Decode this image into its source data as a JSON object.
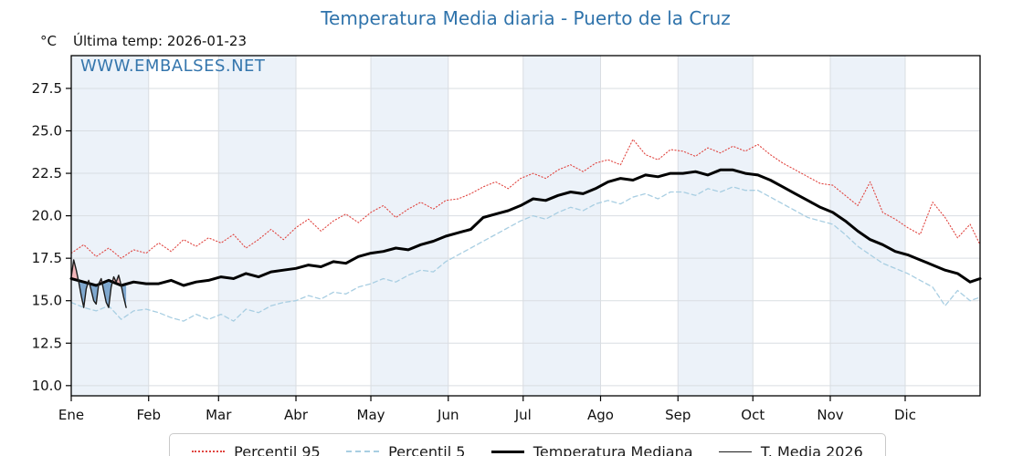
{
  "header": {
    "title": "Temperatura Media diaria - Puerto de la Cruz",
    "y_unit": "°C",
    "last_temp": "Última temp: 2026-01-23"
  },
  "watermark": "WWW.EMBALSES.NET",
  "colors": {
    "title_blue": "#2f73ab",
    "band": "#ecf2f9",
    "grid": "#d9dde2",
    "spine": "#000000",
    "fill_above": "#f2b6ba",
    "fill_below": "#7fa8cf"
  },
  "legend": [
    {
      "label": "Percentil 95",
      "style": "dotted",
      "color": "#e04540",
      "width": 2
    },
    {
      "label": "Percentil 5",
      "style": "dashed",
      "color": "#a8cee2",
      "width": 2
    },
    {
      "label": "Temperatura Mediana",
      "style": "solid",
      "color": "#000000",
      "width": 3
    },
    {
      "label": "T. Media 2026",
      "style": "solid",
      "color": "#1c1c1c",
      "width": 1.5
    }
  ],
  "chart_data": {
    "type": "line",
    "title": "Temperatura Media diaria - Puerto de la Cruz",
    "xlabel": "",
    "ylabel": "°C",
    "grid": true,
    "legend_position": "bottom",
    "ylim": [
      9.4,
      29.43
    ],
    "y_ticks": [
      10.0,
      12.5,
      15.0,
      17.5,
      20.0,
      22.5,
      25.0,
      27.5
    ],
    "y_tick_labels": [
      "10.0",
      "12.5",
      "15.0",
      "17.5",
      "20.0",
      "22.5",
      "25.0",
      "27.5"
    ],
    "x_tick_labels": [
      "Ene",
      "Feb",
      "Mar",
      "Abr",
      "May",
      "Jun",
      "Jul",
      "Ago",
      "Sep",
      "Oct",
      "Nov",
      "Dic"
    ],
    "month_start_days": [
      1,
      32,
      60,
      91,
      121,
      152,
      182,
      213,
      244,
      274,
      305,
      335
    ],
    "days_in_year": 365,
    "x_days": [
      1,
      6,
      11,
      16,
      21,
      26,
      31,
      36,
      41,
      46,
      51,
      56,
      61,
      66,
      71,
      76,
      81,
      86,
      91,
      96,
      101,
      106,
      111,
      116,
      121,
      126,
      131,
      136,
      141,
      146,
      151,
      156,
      161,
      166,
      171,
      176,
      181,
      186,
      191,
      196,
      201,
      206,
      211,
      216,
      221,
      226,
      231,
      236,
      241,
      246,
      251,
      256,
      261,
      266,
      271,
      276,
      281,
      286,
      291,
      296,
      301,
      306,
      311,
      316,
      321,
      326,
      331,
      336,
      341,
      346,
      351,
      356,
      361,
      365
    ],
    "series": [
      {
        "name": "Percentil 95",
        "style": "dotted",
        "color": "#e04540",
        "line_width": 1.1,
        "values": [
          17.8,
          18.3,
          17.6,
          18.1,
          17.5,
          18.0,
          17.8,
          18.4,
          17.9,
          18.6,
          18.2,
          18.7,
          18.4,
          18.9,
          18.1,
          18.6,
          19.2,
          18.6,
          19.3,
          19.8,
          19.1,
          19.7,
          20.1,
          19.6,
          20.2,
          20.6,
          19.9,
          20.4,
          20.8,
          20.4,
          20.9,
          21.0,
          21.3,
          21.7,
          22.0,
          21.6,
          22.2,
          22.5,
          22.2,
          22.7,
          23.0,
          22.6,
          23.1,
          23.3,
          23.0,
          24.5,
          23.6,
          23.3,
          23.9,
          23.8,
          23.5,
          24.0,
          23.7,
          24.1,
          23.8,
          24.2,
          23.6,
          23.1,
          22.7,
          22.3,
          21.9,
          21.8,
          21.2,
          20.6,
          22.0,
          20.2,
          19.8,
          19.3,
          18.9,
          20.8,
          19.9,
          18.7,
          19.5,
          18.3
        ]
      },
      {
        "name": "Percentil 5",
        "style": "dashed",
        "color": "#a8cee2",
        "line_width": 1.3,
        "values": [
          14.9,
          14.6,
          14.4,
          14.7,
          13.9,
          14.4,
          14.5,
          14.3,
          14.0,
          13.8,
          14.2,
          13.9,
          14.2,
          13.8,
          14.5,
          14.3,
          14.7,
          14.9,
          15.0,
          15.3,
          15.1,
          15.5,
          15.4,
          15.8,
          16.0,
          16.3,
          16.1,
          16.5,
          16.8,
          16.7,
          17.3,
          17.7,
          18.1,
          18.5,
          18.9,
          19.3,
          19.7,
          20.0,
          19.8,
          20.2,
          20.5,
          20.3,
          20.7,
          20.9,
          20.7,
          21.1,
          21.3,
          21.0,
          21.4,
          21.4,
          21.2,
          21.6,
          21.4,
          21.7,
          21.5,
          21.5,
          21.1,
          20.7,
          20.3,
          19.9,
          19.7,
          19.5,
          18.9,
          18.2,
          17.7,
          17.2,
          16.9,
          16.6,
          16.2,
          15.8,
          14.7,
          15.6,
          15.0,
          15.2
        ]
      },
      {
        "name": "Temperatura Mediana",
        "style": "solid",
        "color": "#000000",
        "line_width": 3,
        "values": [
          16.3,
          16.1,
          15.9,
          16.2,
          15.9,
          16.1,
          16.0,
          16.0,
          16.2,
          15.9,
          16.1,
          16.2,
          16.4,
          16.3,
          16.6,
          16.4,
          16.7,
          16.8,
          16.9,
          17.1,
          17.0,
          17.3,
          17.2,
          17.6,
          17.8,
          17.9,
          18.1,
          18.0,
          18.3,
          18.5,
          18.8,
          19.0,
          19.2,
          19.9,
          20.1,
          20.3,
          20.6,
          21.0,
          20.9,
          21.2,
          21.4,
          21.3,
          21.6,
          22.0,
          22.2,
          22.1,
          22.4,
          22.3,
          22.5,
          22.5,
          22.6,
          22.4,
          22.7,
          22.7,
          22.5,
          22.4,
          22.1,
          21.7,
          21.3,
          20.9,
          20.5,
          20.2,
          19.7,
          19.1,
          18.6,
          18.3,
          17.9,
          17.7,
          17.4,
          17.1,
          16.8,
          16.6,
          16.1,
          16.3
        ]
      },
      {
        "name": "T. Media 2026",
        "style": "solid",
        "color": "#1c1c1c",
        "line_width": 1.4,
        "x_days": [
          1,
          2,
          3,
          4,
          5,
          6,
          7,
          8,
          9,
          10,
          11,
          12,
          13,
          14,
          15,
          16,
          17,
          18,
          19,
          20,
          21,
          22,
          23
        ],
        "values": [
          16.4,
          17.4,
          16.8,
          16.1,
          15.3,
          14.6,
          15.7,
          16.2,
          15.6,
          15.0,
          14.8,
          16.0,
          16.3,
          15.6,
          14.9,
          14.6,
          15.8,
          16.4,
          16.1,
          16.5,
          15.9,
          15.2,
          14.6
        ],
        "fill_vs": "Temperatura Mediana"
      }
    ]
  }
}
